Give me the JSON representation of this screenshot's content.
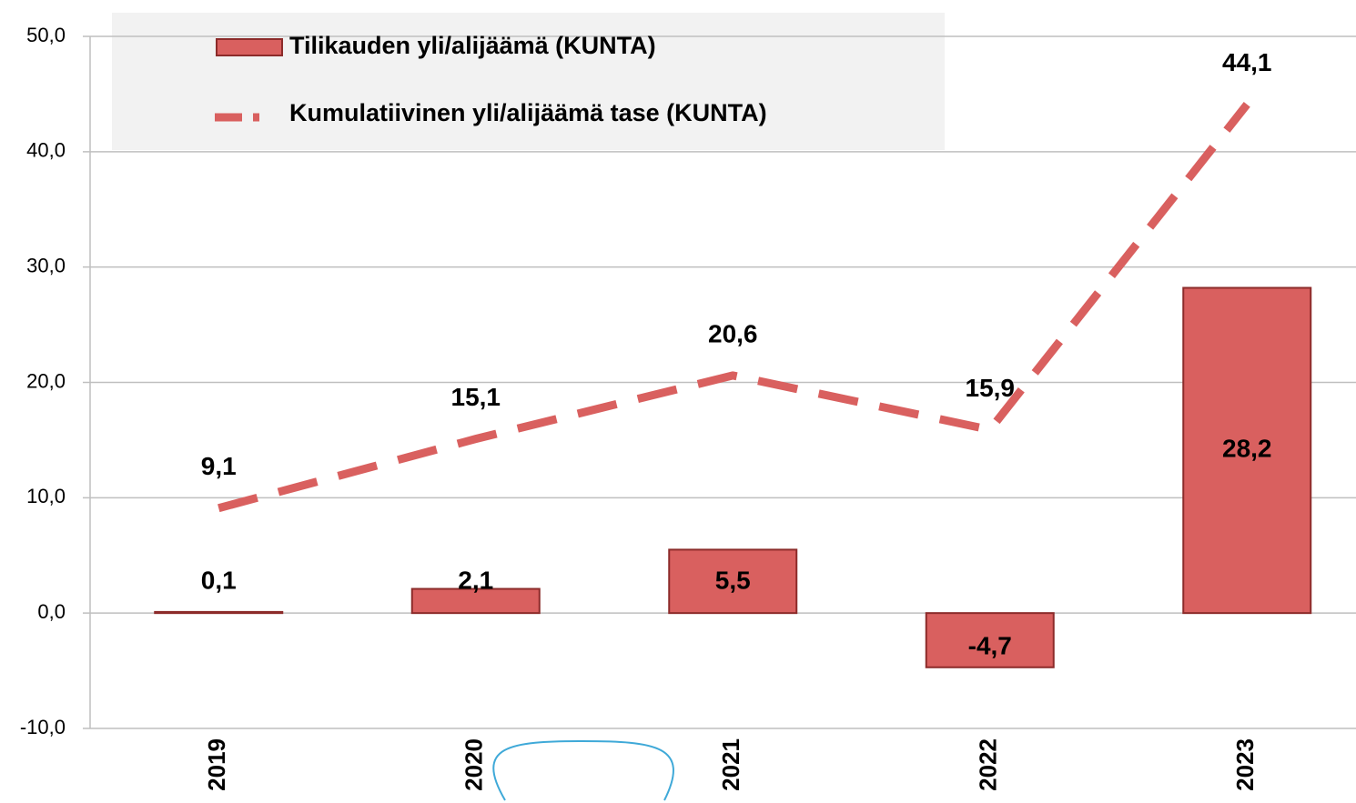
{
  "chart_data": {
    "type": "bar_line",
    "categories": [
      "2019",
      "2020",
      "2021",
      "2022",
      "2023"
    ],
    "series": [
      {
        "name": "Tilikauden yli/alijäämä (KUNTA)",
        "type": "bar",
        "color": "#d9605f",
        "values": [
          0.1,
          2.1,
          5.5,
          -4.7,
          28.2
        ],
        "value_labels": [
          "0,1",
          "2,1",
          "5,5",
          "-4,7",
          "28,2"
        ]
      },
      {
        "name": "Kumulatiivinen yli/alijäämä tase (KUNTA)",
        "type": "line",
        "color": "#d9605f",
        "dashed": true,
        "values": [
          9.1,
          15.1,
          20.6,
          15.9,
          44.1
        ],
        "value_labels": [
          "9,1",
          "15,1",
          "20,6",
          "15,9",
          "44,1"
        ]
      }
    ],
    "ylim": [
      -10,
      50
    ],
    "yticks": [
      {
        "value": -10,
        "label": "-10,0"
      },
      {
        "value": 0,
        "label": "0,0"
      },
      {
        "value": 10,
        "label": "10,0"
      },
      {
        "value": 20,
        "label": "20,0"
      },
      {
        "value": 30,
        "label": "30,0"
      },
      {
        "value": 40,
        "label": "40,0"
      },
      {
        "value": 50,
        "label": "50,0"
      }
    ],
    "grid": true,
    "legend": "top-left"
  }
}
